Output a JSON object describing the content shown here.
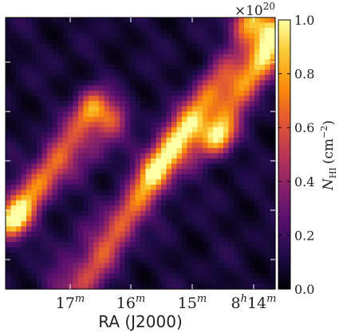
{
  "chart_data": {
    "type": "heatmap",
    "title": "",
    "xlabel": "RA (J2000)",
    "ylabel": "",
    "x_ticks": [
      {
        "label": "17",
        "sup": "m"
      },
      {
        "label": "16",
        "sup": "m"
      },
      {
        "label": "15",
        "sup": "m"
      },
      {
        "label": "8",
        "sup": "h",
        "label2": "14",
        "sup2": "m"
      }
    ],
    "y_ticks_count": 5,
    "colorbar": {
      "label": "N",
      "label_sub": "HI",
      "label_unit": "(cm",
      "label_unit_sup": "−2",
      "label_unit_close": ")",
      "multiplier_base": "×10",
      "multiplier_exp": "20",
      "ticks": [
        "0.0",
        "0.2",
        "0.4",
        "0.6",
        "0.8",
        "1.0"
      ],
      "vmin": 0.0,
      "vmax": 1.0,
      "colormap": "inferno"
    },
    "features": [
      {
        "kind": "filament",
        "from": [
          0.02,
          0.73
        ],
        "to": [
          0.36,
          0.36
        ],
        "peak": 0.62
      },
      {
        "kind": "filament",
        "from": [
          0.25,
          0.98
        ],
        "to": [
          0.98,
          0.05
        ],
        "peak": 0.58
      },
      {
        "kind": "filament",
        "from": [
          0.55,
          0.55
        ],
        "to": [
          0.97,
          0.15
        ],
        "peak": 0.45
      },
      {
        "kind": "clump",
        "at": [
          0.78,
          0.43
        ],
        "peak": 0.78
      },
      {
        "kind": "clump",
        "at": [
          0.93,
          0.03
        ],
        "peak": 1.0
      },
      {
        "kind": "clump",
        "at": [
          0.34,
          0.35
        ],
        "peak": 0.55
      },
      {
        "kind": "clump",
        "at": [
          0.03,
          0.74
        ],
        "peak": 0.5
      }
    ]
  }
}
